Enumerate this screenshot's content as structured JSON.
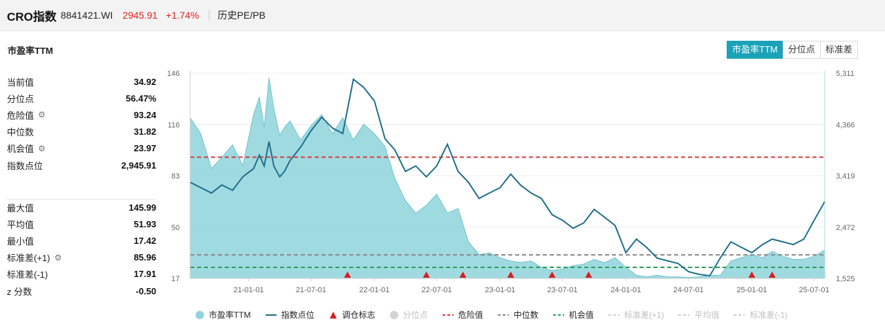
{
  "header": {
    "index_name": "CRO指数",
    "code": "8841421.WI",
    "price": "2945.91",
    "change": "+1.74%",
    "history_link": "历史PE/PB"
  },
  "section_title": "市盈率TTM",
  "tabs": [
    {
      "label": "市盈率TTM",
      "active": true
    },
    {
      "label": "分位点",
      "active": false
    },
    {
      "label": "标准差",
      "active": false
    }
  ],
  "stats_top": [
    {
      "label": "当前值",
      "value": "34.92",
      "gear": false
    },
    {
      "label": "分位点",
      "value": "56.47%",
      "gear": false
    },
    {
      "label": "危险值",
      "value": "93.24",
      "gear": true
    },
    {
      "label": "中位数",
      "value": "31.82",
      "gear": false
    },
    {
      "label": "机会值",
      "value": "23.97",
      "gear": true
    },
    {
      "label": "指数点位",
      "value": "2,945.91",
      "gear": false
    }
  ],
  "stats_bottom": [
    {
      "label": "最大值",
      "value": "145.99",
      "gear": false
    },
    {
      "label": "平均值",
      "value": "51.93",
      "gear": false
    },
    {
      "label": "最小值",
      "value": "17.42",
      "gear": false
    },
    {
      "label": "标准差(+1)",
      "value": "85.96",
      "gear": true
    },
    {
      "label": "标准差(-1)",
      "value": "17.91",
      "gear": false
    },
    {
      "label": "z 分数",
      "value": "-0.50",
      "gear": false
    }
  ],
  "legend": [
    {
      "label": "市盈率TTM",
      "kind": "dot",
      "color": "#8fd3dc",
      "faded": false
    },
    {
      "label": "指数点位",
      "kind": "line",
      "color": "#1f6f8b",
      "faded": false
    },
    {
      "label": "调仓标志",
      "kind": "triangle",
      "color": "#d42020",
      "faded": false
    },
    {
      "label": "分位点",
      "kind": "dot",
      "color": "#cfcfcf",
      "faded": true
    },
    {
      "label": "危险值",
      "kind": "dash",
      "color": "#d43c3c",
      "faded": false
    },
    {
      "label": "中位数",
      "kind": "dash",
      "color": "#888888",
      "faded": false
    },
    {
      "label": "机会值",
      "kind": "dash",
      "color": "#2aa05a",
      "faded": false
    },
    {
      "label": "标准差(+1)",
      "kind": "dash",
      "color": "#cccccc",
      "faded": true
    },
    {
      "label": "平均值",
      "kind": "dash",
      "color": "#cccccc",
      "faded": true
    },
    {
      "label": "标准差(-1)",
      "kind": "dash",
      "color": "#cccccc",
      "faded": true
    }
  ],
  "chart_data": {
    "type": "area",
    "x_range": [
      "2020-07-15",
      "2025-08-01"
    ],
    "x_tick_labels": [
      "21-01-01",
      "21-07-01",
      "22-01-01",
      "22-07-01",
      "23-01-01",
      "23-07-01",
      "24-01-01",
      "24-07-01",
      "25-01-01",
      "25-07-01"
    ],
    "x_tick_dates": [
      "2021-01-01",
      "2021-07-01",
      "2022-01-01",
      "2022-07-01",
      "2023-01-01",
      "2023-07-01",
      "2024-01-01",
      "2024-07-01",
      "2025-01-01",
      "2025-07-01"
    ],
    "y_left": {
      "ticks": [
        "146",
        "116",
        "83",
        "50",
        "17"
      ],
      "ylim": [
        17,
        146
      ]
    },
    "y_right": {
      "ticks": [
        "5,311",
        "4,366",
        "3,419",
        "2,472",
        "1,525"
      ],
      "ylim": [
        1525,
        5311
      ]
    },
    "reference_lines": {
      "danger": 93.24,
      "median": 31.82,
      "opportunity": 23.97
    },
    "rebalance_dates": [
      "2021-10-15",
      "2022-06-01",
      "2022-09-15",
      "2023-02-01",
      "2023-06-01",
      "2023-09-15",
      "2025-01-01",
      "2025-03-01"
    ],
    "series": [
      {
        "name": "市盈率TTM",
        "axis": "left",
        "dates": [
          "2020-07-15",
          "2020-08-15",
          "2020-09-15",
          "2020-10-15",
          "2020-11-15",
          "2020-12-15",
          "2021-01-15",
          "2021-02-01",
          "2021-02-15",
          "2021-03-01",
          "2021-03-15",
          "2021-04-01",
          "2021-04-15",
          "2021-05-01",
          "2021-06-01",
          "2021-07-01",
          "2021-08-01",
          "2021-09-01",
          "2021-10-01",
          "2021-11-01",
          "2021-12-01",
          "2022-01-01",
          "2022-02-01",
          "2022-03-01",
          "2022-04-01",
          "2022-05-01",
          "2022-06-01",
          "2022-07-01",
          "2022-08-01",
          "2022-09-01",
          "2022-10-01",
          "2022-11-01",
          "2022-12-01",
          "2023-01-01",
          "2023-02-01",
          "2023-03-01",
          "2023-04-01",
          "2023-05-01",
          "2023-06-01",
          "2023-07-01",
          "2023-08-01",
          "2023-09-01",
          "2023-10-01",
          "2023-11-01",
          "2023-12-01",
          "2024-01-01",
          "2024-02-01",
          "2024-03-01",
          "2024-04-01",
          "2024-05-01",
          "2024-06-01",
          "2024-07-01",
          "2024-08-01",
          "2024-09-01",
          "2024-10-01",
          "2024-11-01",
          "2024-12-01",
          "2025-01-01",
          "2025-02-01",
          "2025-03-01",
          "2025-04-01",
          "2025-05-01",
          "2025-06-01",
          "2025-07-01",
          "2025-08-01"
        ],
        "values": [
          118,
          108,
          86,
          93,
          101,
          88,
          120,
          131,
          112,
          143,
          124,
          107,
          112,
          116,
          104,
          113,
          120,
          108,
          118,
          104,
          114,
          108,
          100,
          80,
          66,
          58,
          63,
          70,
          58,
          61,
          40,
          32,
          33,
          30,
          28,
          27,
          28,
          24,
          22,
          23,
          25,
          26,
          29,
          27,
          30,
          24,
          19,
          18,
          19,
          18,
          18,
          17.5,
          18,
          19,
          19,
          28,
          30,
          32,
          30,
          34,
          31,
          29,
          29,
          31,
          34.9
        ]
      },
      {
        "name": "指数点位",
        "axis": "right",
        "dates": [
          "2020-07-15",
          "2020-08-15",
          "2020-09-15",
          "2020-10-15",
          "2020-11-15",
          "2020-12-15",
          "2021-01-15",
          "2021-02-01",
          "2021-02-15",
          "2021-03-01",
          "2021-03-15",
          "2021-04-01",
          "2021-04-15",
          "2021-05-01",
          "2021-06-01",
          "2021-07-01",
          "2021-08-01",
          "2021-09-01",
          "2021-10-01",
          "2021-11-01",
          "2021-12-01",
          "2022-01-01",
          "2022-02-01",
          "2022-03-01",
          "2022-04-01",
          "2022-05-01",
          "2022-06-01",
          "2022-07-01",
          "2022-08-01",
          "2022-09-01",
          "2022-10-01",
          "2022-11-01",
          "2022-12-01",
          "2023-01-01",
          "2023-02-01",
          "2023-03-01",
          "2023-04-01",
          "2023-05-01",
          "2023-06-01",
          "2023-07-01",
          "2023-08-01",
          "2023-09-01",
          "2023-10-01",
          "2023-11-01",
          "2023-12-01",
          "2024-01-01",
          "2024-02-01",
          "2024-03-01",
          "2024-04-01",
          "2024-05-01",
          "2024-06-01",
          "2024-07-01",
          "2024-08-01",
          "2024-09-01",
          "2024-10-01",
          "2024-11-01",
          "2024-12-01",
          "2025-01-01",
          "2025-02-01",
          "2025-03-01",
          "2025-04-01",
          "2025-05-01",
          "2025-06-01",
          "2025-07-01",
          "2025-08-01"
        ],
        "values": [
          3300,
          3200,
          3100,
          3250,
          3150,
          3400,
          3550,
          3800,
          3600,
          4050,
          3600,
          3400,
          3500,
          3700,
          3950,
          4250,
          4500,
          4300,
          4200,
          5200,
          5050,
          4800,
          4100,
          3900,
          3500,
          3600,
          3400,
          3600,
          4000,
          3500,
          3300,
          3000,
          3100,
          3200,
          3450,
          3250,
          3100,
          3000,
          2700,
          2600,
          2450,
          2550,
          2800,
          2650,
          2500,
          2000,
          2250,
          2100,
          1900,
          1850,
          1800,
          1650,
          1600,
          1575,
          1900,
          2200,
          2100,
          2000,
          2150,
          2250,
          2200,
          2150,
          2250,
          2600,
          2945.91
        ]
      }
    ]
  }
}
